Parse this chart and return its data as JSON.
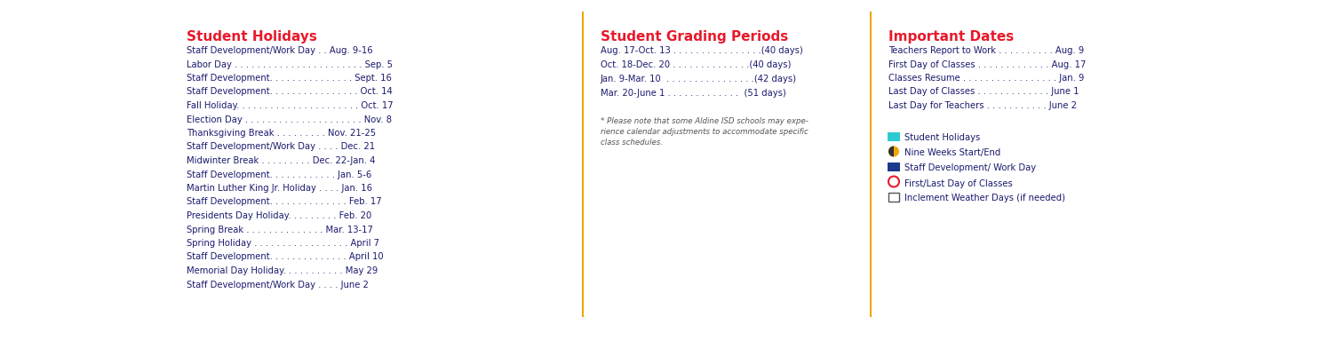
{
  "bg_color": "#ffffff",
  "title_color": "#e8192c",
  "text_color": "#1a1a6e",
  "separator_color": "#f0a500",
  "section1_title": "Student Holidays",
  "section1_items": [
    [
      "Staff Development/Work Day . . Aug. 9-16",
      ""
    ],
    [
      "Labor Day . . . . . . . . . . . . . . . . . . . . . . . Sep. 5",
      ""
    ],
    [
      "Staff Development. . . . . . . . . . . . . . . Sept. 16",
      ""
    ],
    [
      "Staff Development. . . . . . . . . . . . . . . . Oct. 14",
      ""
    ],
    [
      "Fall Holiday. . . . . . . . . . . . . . . . . . . . . . Oct. 17",
      ""
    ],
    [
      "Election Day . . . . . . . . . . . . . . . . . . . . . Nov. 8",
      ""
    ],
    [
      "Thanksgiving Break . . . . . . . . . Nov. 21-25",
      ""
    ],
    [
      "Staff Development/Work Day . . . . Dec. 21",
      ""
    ],
    [
      "Midwinter Break . . . . . . . . . Dec. 22-Jan. 4",
      ""
    ],
    [
      "Staff Development. . . . . . . . . . . . Jan. 5-6",
      ""
    ],
    [
      "Martin Luther King Jr. Holiday . . . . Jan. 16",
      ""
    ],
    [
      "Staff Development. . . . . . . . . . . . . . Feb. 17",
      ""
    ],
    [
      "Presidents Day Holiday. . . . . . . . . Feb. 20",
      ""
    ],
    [
      "Spring Break . . . . . . . . . . . . . . Mar. 13-17",
      ""
    ],
    [
      "Spring Holiday . . . . . . . . . . . . . . . . . April 7",
      ""
    ],
    [
      "Staff Development. . . . . . . . . . . . . . April 10",
      ""
    ],
    [
      "Memorial Day Holiday. . . . . . . . . . . May 29",
      ""
    ],
    [
      "Staff Development/Work Day . . . . June 2",
      ""
    ]
  ],
  "section2_title": "Student Grading Periods",
  "section2_items": [
    "Aug. 17-Oct. 13 . . . . . . . . . . . . . . . .(40 days)",
    "Oct. 18-Dec. 20 . . . . . . . . . . . . . .(40 days)",
    "Jan. 9-Mar. 10  . . . . . . . . . . . . . . . .(42 days)",
    "Mar. 20-June 1 . . . . . . . . . . . . .  (51 days)"
  ],
  "section2_note": "* Please note that some Aldine ISD schools may expe-\nrience calendar adjustments to accommodate specific\nclass schedules.",
  "section3_title": "Important Dates",
  "section3_items": [
    [
      "Teachers Report to Work . . . . . . . . . . Aug. 9",
      ""
    ],
    [
      "First Day of Classes . . . . . . . . . . . . . Aug. 17",
      ""
    ],
    [
      "Classes Resume . . . . . . . . . . . . . . . . . Jan. 9",
      ""
    ],
    [
      "Last Day of Classes . . . . . . . . . . . . . June 1",
      ""
    ],
    [
      "Last Day for Teachers . . . . . . . . . . . June 2",
      ""
    ]
  ],
  "legend_items": [
    {
      "label": "Student Holidays",
      "type": "square",
      "color": "#2ecad2"
    },
    {
      "label": "Nine Weeks Start/End",
      "type": "half_circle",
      "color": "#f0a500"
    },
    {
      "label": "Staff Development/ Work Day",
      "type": "square",
      "color": "#1a3a8c"
    },
    {
      "label": "First/Last Day of Classes",
      "type": "circle_outline",
      "color": "#e8192c"
    },
    {
      "label": "Inclement Weather Days (if needed)",
      "type": "square_outline",
      "color": "#555555"
    }
  ]
}
